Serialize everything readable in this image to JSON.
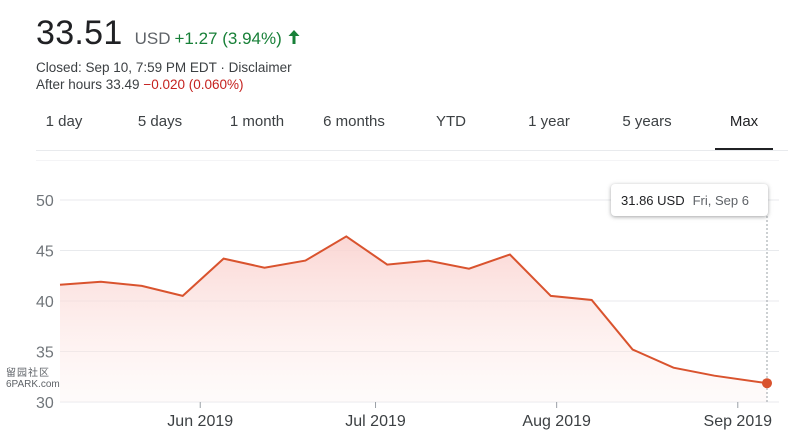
{
  "quote": {
    "price": "33.51",
    "currency": "USD",
    "change": "+1.27 (3.94%)",
    "closed_text": "Closed: Sep 10, 7:59 PM EDT · Disclaimer",
    "after_hours_label": "After hours 33.49 ",
    "after_hours_change": "−0.020 (0.060%)",
    "up_color": "#188038",
    "down_color": "#c5221f"
  },
  "tabs": [
    {
      "label": "1 day"
    },
    {
      "label": "5 days"
    },
    {
      "label": "1 month"
    },
    {
      "label": "6 months"
    },
    {
      "label": "YTD"
    },
    {
      "label": "1 year"
    },
    {
      "label": "5 years"
    },
    {
      "label": "Max",
      "active": true
    }
  ],
  "tooltip": {
    "value": "31.86 USD",
    "date": "Fri, Sep 6"
  },
  "watermark": {
    "line1": "留园社区",
    "line2": "6PARK.com"
  },
  "chart_data": {
    "type": "area",
    "title": "",
    "xlabel": "",
    "ylabel": "",
    "ylim": [
      30,
      50
    ],
    "yticks": [
      "50",
      "45",
      "40",
      "35",
      "30"
    ],
    "xticks": [
      "Jun 2019",
      "Jul 2019",
      "Aug 2019",
      "Sep 2019"
    ],
    "line_color": "#d9532e",
    "fill_color": "#fce8e6",
    "grid": true,
    "series": [
      {
        "x": [
          "2019-05-08",
          "2019-05-15",
          "2019-05-22",
          "2019-05-29",
          "2019-06-05",
          "2019-06-12",
          "2019-06-19",
          "2019-06-26",
          "2019-07-03",
          "2019-07-10",
          "2019-07-17",
          "2019-07-24",
          "2019-07-31",
          "2019-08-07",
          "2019-08-14",
          "2019-08-21",
          "2019-08-28",
          "2019-09-06"
        ],
        "y": [
          41.6,
          41.9,
          41.5,
          40.5,
          44.2,
          43.3,
          44.0,
          46.4,
          43.6,
          44.0,
          43.2,
          44.6,
          40.5,
          40.1,
          35.2,
          33.4,
          32.6,
          31.86
        ]
      }
    ]
  }
}
